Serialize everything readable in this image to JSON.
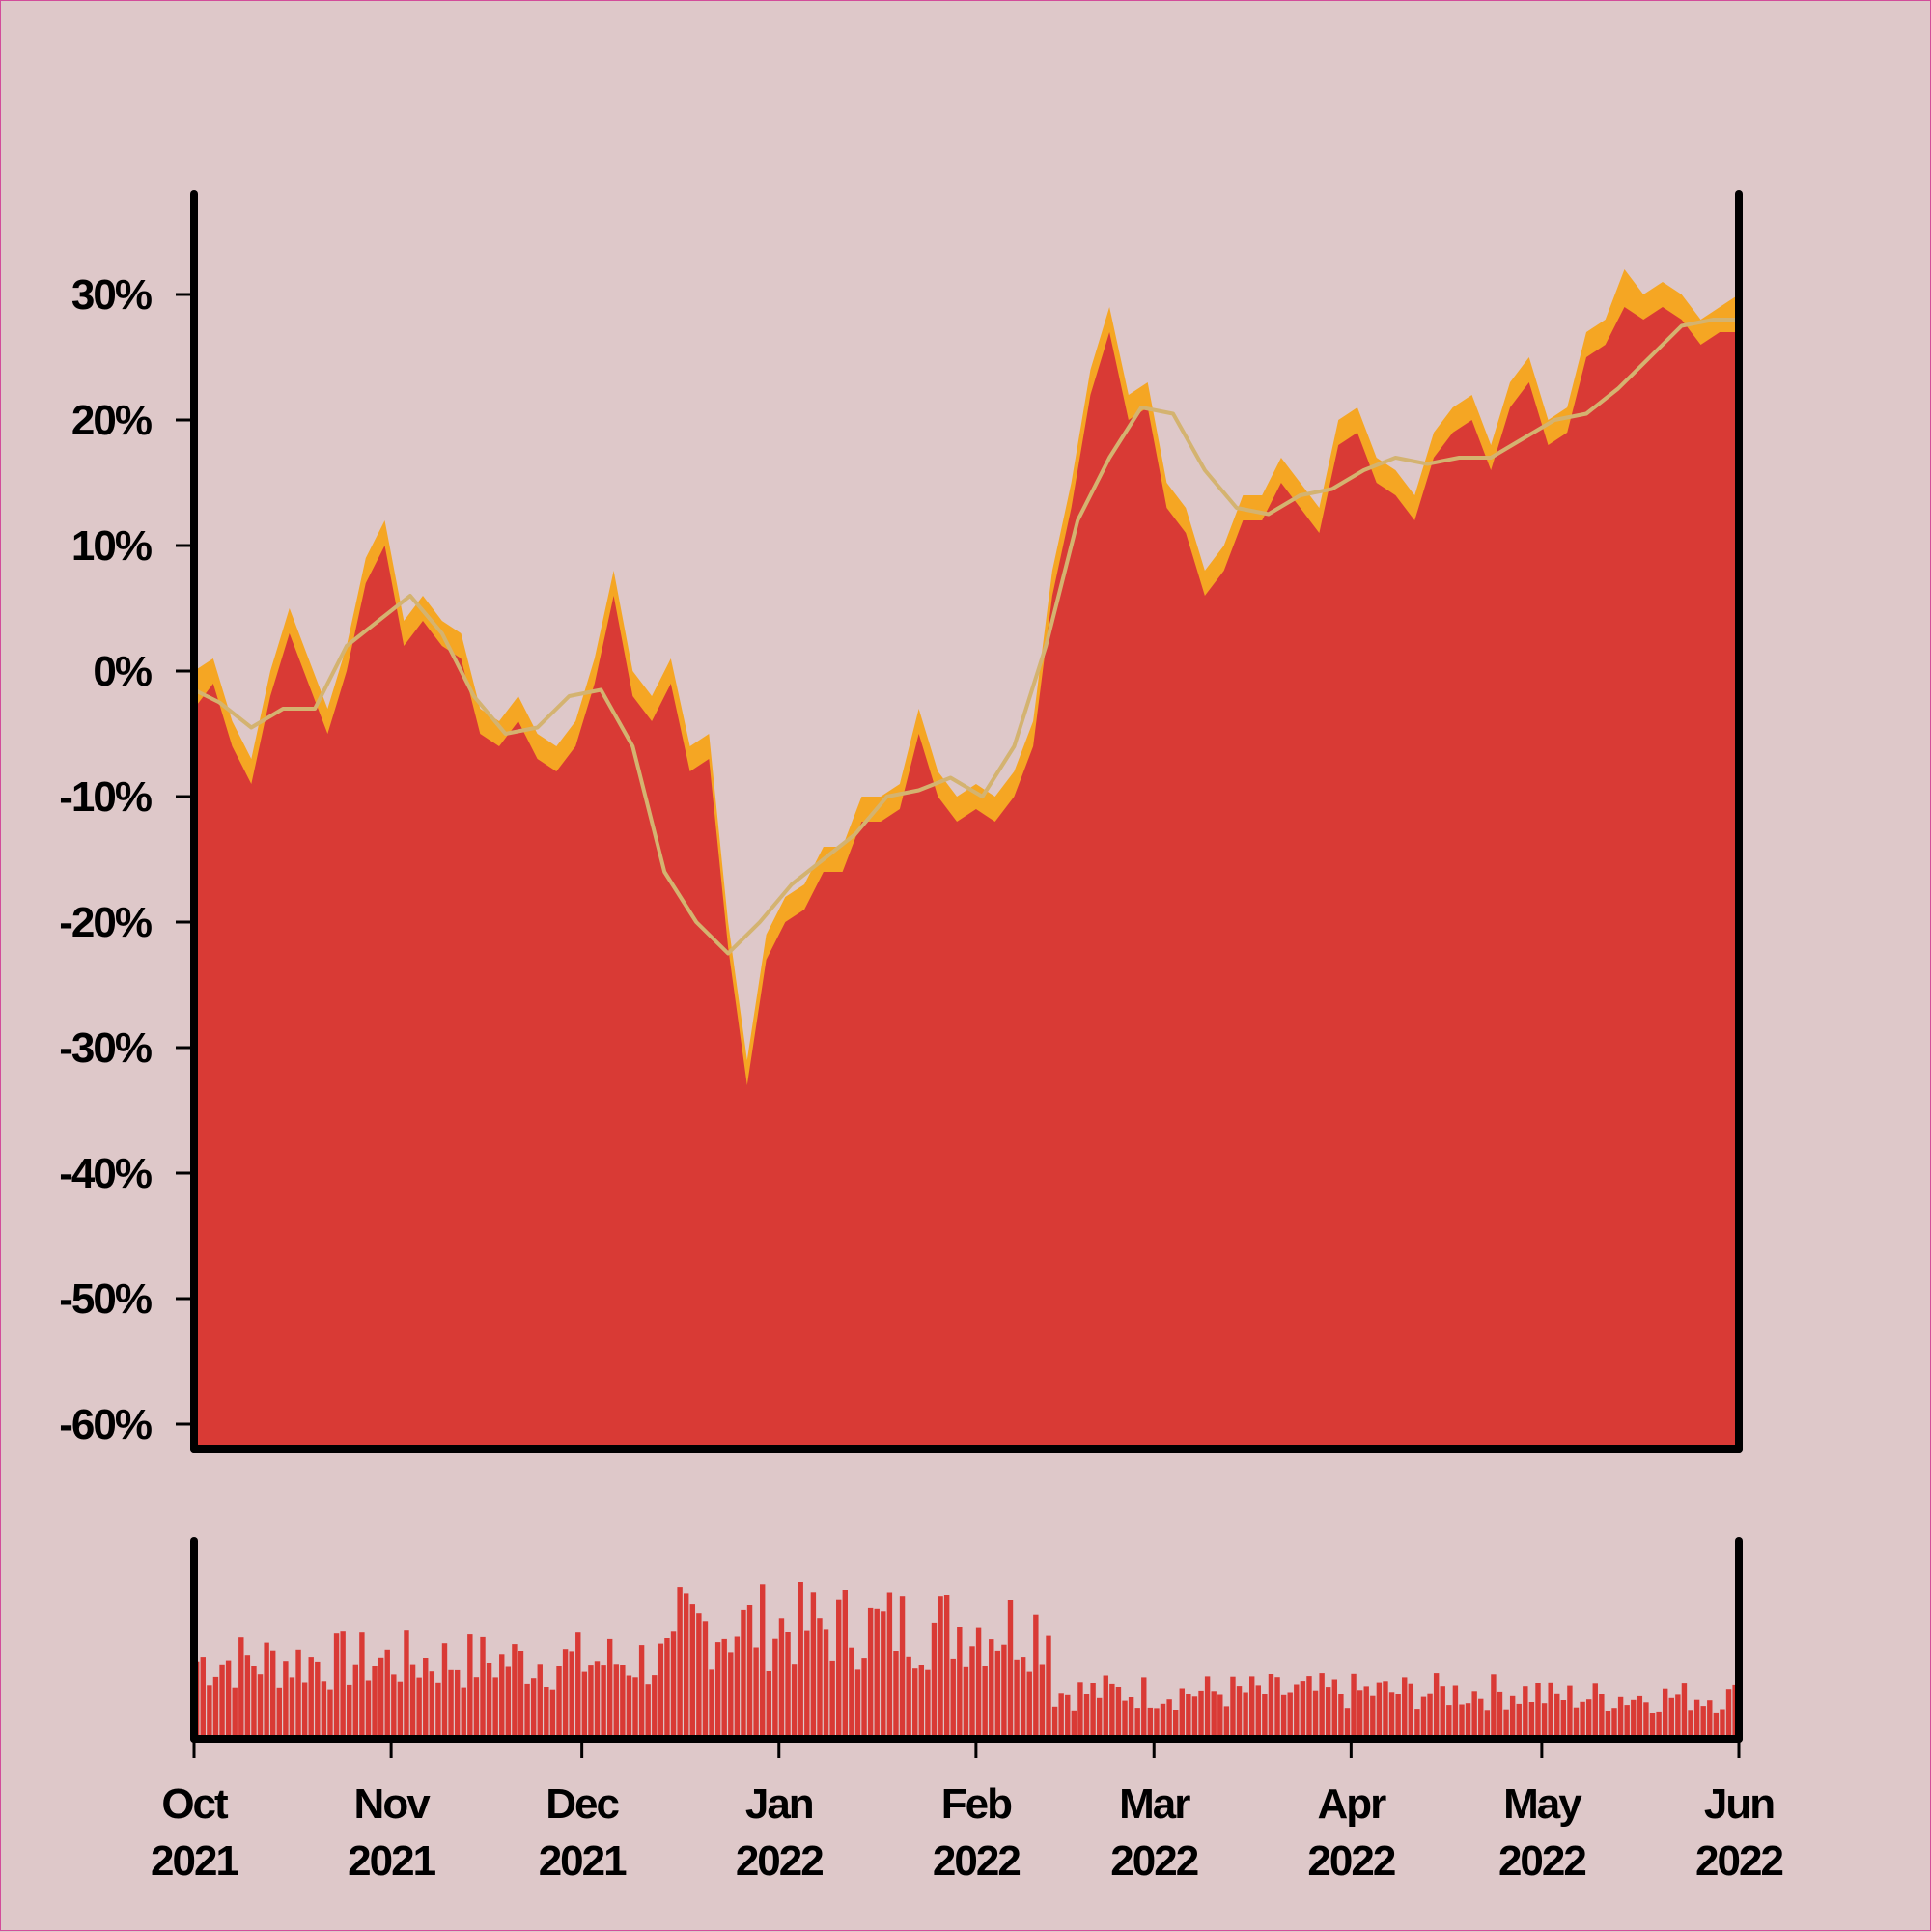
{
  "colors": {
    "background": "#dec8c9",
    "area_fill": "#d93a35",
    "band_fill": "#f5a623",
    "moving_average": "#d4b370",
    "volume_fill": "#d93a35",
    "axis": "#000000"
  },
  "chart_data": [
    {
      "type": "area",
      "title": "",
      "xlabel": "",
      "ylabel": "",
      "y_unit": "%",
      "ylim": [
        -62,
        38
      ],
      "grid": false,
      "yticks": [
        {
          "value": 30,
          "label": "30%"
        },
        {
          "value": 20,
          "label": "20%"
        },
        {
          "value": 10,
          "label": "10%"
        },
        {
          "value": 0,
          "label": "0%"
        },
        {
          "value": -10,
          "label": "-10%"
        },
        {
          "value": -20,
          "label": "-20%"
        },
        {
          "value": -30,
          "label": "-30%"
        },
        {
          "value": -40,
          "label": "-40%"
        },
        {
          "value": -50,
          "label": "-50%"
        },
        {
          "value": -60,
          "label": "-60%"
        }
      ],
      "series": [
        {
          "role": "daily high band",
          "x": [
            "2021-10-01",
            "2021-10-04",
            "2021-10-07",
            "2021-10-10",
            "2021-10-13",
            "2021-10-16",
            "2021-10-19",
            "2021-10-22",
            "2021-10-25",
            "2021-10-28",
            "2021-10-31",
            "2021-11-03",
            "2021-11-06",
            "2021-11-09",
            "2021-11-12",
            "2021-11-15",
            "2021-11-18",
            "2021-11-21",
            "2021-11-24",
            "2021-11-27",
            "2021-11-30",
            "2021-12-03",
            "2021-12-06",
            "2021-12-09",
            "2021-12-12",
            "2021-12-15",
            "2021-12-18",
            "2021-12-21",
            "2021-12-24",
            "2021-12-27",
            "2021-12-30",
            "2022-01-02",
            "2022-01-05",
            "2022-01-08",
            "2022-01-11",
            "2022-01-14",
            "2022-01-17",
            "2022-01-20",
            "2022-01-23",
            "2022-01-26",
            "2022-01-29",
            "2022-02-01",
            "2022-02-04",
            "2022-02-07",
            "2022-02-10",
            "2022-02-13",
            "2022-02-16",
            "2022-02-19",
            "2022-02-22",
            "2022-02-25",
            "2022-02-28",
            "2022-03-03",
            "2022-03-06",
            "2022-03-09",
            "2022-03-12",
            "2022-03-15",
            "2022-03-18",
            "2022-03-21",
            "2022-03-24",
            "2022-03-27",
            "2022-03-30",
            "2022-04-02",
            "2022-04-05",
            "2022-04-08",
            "2022-04-11",
            "2022-04-14",
            "2022-04-17",
            "2022-04-20",
            "2022-04-23",
            "2022-04-26",
            "2022-04-29",
            "2022-05-02",
            "2022-05-05",
            "2022-05-08",
            "2022-05-11",
            "2022-05-14",
            "2022-05-17",
            "2022-05-20",
            "2022-05-23",
            "2022-05-26",
            "2022-05-29",
            "2022-06-01"
          ],
          "values": [
            0,
            1,
            -4,
            -7,
            0,
            5,
            1,
            -3,
            2,
            9,
            12,
            4,
            6,
            4,
            3,
            -3,
            -4,
            -2,
            -5,
            -6,
            -4,
            1,
            8,
            0,
            -2,
            1,
            -6,
            -5,
            -20,
            -31,
            -21,
            -18,
            -17,
            -14,
            -14,
            -10,
            -10,
            -9,
            -3,
            -8,
            -10,
            -9,
            -10,
            -8,
            -4,
            8,
            15,
            24,
            29,
            22,
            23,
            15,
            13,
            8,
            10,
            14,
            14,
            17,
            15,
            13,
            20,
            21,
            17,
            16,
            14,
            19,
            21,
            22,
            18,
            23,
            25,
            20,
            21,
            27,
            28,
            32,
            30,
            31,
            30,
            28,
            29,
            30
          ]
        },
        {
          "role": "daily close",
          "x": [
            "2021-10-01",
            "2021-10-04",
            "2021-10-07",
            "2021-10-10",
            "2021-10-13",
            "2021-10-16",
            "2021-10-19",
            "2021-10-22",
            "2021-10-25",
            "2021-10-28",
            "2021-10-31",
            "2021-11-03",
            "2021-11-06",
            "2021-11-09",
            "2021-11-12",
            "2021-11-15",
            "2021-11-18",
            "2021-11-21",
            "2021-11-24",
            "2021-11-27",
            "2021-11-30",
            "2021-12-03",
            "2021-12-06",
            "2021-12-09",
            "2021-12-12",
            "2021-12-15",
            "2021-12-18",
            "2021-12-21",
            "2021-12-24",
            "2021-12-27",
            "2021-12-30",
            "2022-01-02",
            "2022-01-05",
            "2022-01-08",
            "2022-01-11",
            "2022-01-14",
            "2022-01-17",
            "2022-01-20",
            "2022-01-23",
            "2022-01-26",
            "2022-01-29",
            "2022-02-01",
            "2022-02-04",
            "2022-02-07",
            "2022-02-10",
            "2022-02-13",
            "2022-02-16",
            "2022-02-19",
            "2022-02-22",
            "2022-02-25",
            "2022-02-28",
            "2022-03-03",
            "2022-03-06",
            "2022-03-09",
            "2022-03-12",
            "2022-03-15",
            "2022-03-18",
            "2022-03-21",
            "2022-03-24",
            "2022-03-27",
            "2022-03-30",
            "2022-04-02",
            "2022-04-05",
            "2022-04-08",
            "2022-04-11",
            "2022-04-14",
            "2022-04-17",
            "2022-04-20",
            "2022-04-23",
            "2022-04-26",
            "2022-04-29",
            "2022-05-02",
            "2022-05-05",
            "2022-05-08",
            "2022-05-11",
            "2022-05-14",
            "2022-05-17",
            "2022-05-20",
            "2022-05-23",
            "2022-05-26",
            "2022-05-29",
            "2022-06-01"
          ],
          "values": [
            -3,
            -1,
            -6,
            -9,
            -2,
            3,
            -1,
            -5,
            0,
            7,
            10,
            2,
            4,
            2,
            1,
            -5,
            -6,
            -4,
            -7,
            -8,
            -6,
            -1,
            6,
            -2,
            -4,
            -1,
            -8,
            -7,
            -22,
            -33,
            -23,
            -20,
            -19,
            -16,
            -16,
            -12,
            -12,
            -11,
            -5,
            -10,
            -12,
            -11,
            -12,
            -10,
            -6,
            6,
            13,
            22,
            27,
            20,
            21,
            13,
            11,
            6,
            8,
            12,
            12,
            15,
            13,
            11,
            18,
            19,
            15,
            14,
            12,
            17,
            19,
            20,
            16,
            21,
            23,
            18,
            19,
            25,
            26,
            29,
            28,
            29,
            28,
            26,
            27,
            27
          ]
        },
        {
          "role": "moving average",
          "x": [
            "2021-10-01",
            "2021-10-05",
            "2021-10-10",
            "2021-10-15",
            "2021-10-20",
            "2021-10-25",
            "2021-10-30",
            "2021-11-04",
            "2021-11-09",
            "2021-11-14",
            "2021-11-19",
            "2021-11-24",
            "2021-11-29",
            "2021-12-04",
            "2021-12-09",
            "2021-12-14",
            "2021-12-19",
            "2021-12-24",
            "2021-12-29",
            "2022-01-03",
            "2022-01-08",
            "2022-01-13",
            "2022-01-18",
            "2022-01-23",
            "2022-01-28",
            "2022-02-02",
            "2022-02-07",
            "2022-02-12",
            "2022-02-17",
            "2022-02-22",
            "2022-02-27",
            "2022-03-04",
            "2022-03-09",
            "2022-03-14",
            "2022-03-19",
            "2022-03-24",
            "2022-03-29",
            "2022-04-03",
            "2022-04-08",
            "2022-04-13",
            "2022-04-18",
            "2022-04-23",
            "2022-04-28",
            "2022-05-03",
            "2022-05-08",
            "2022-05-13",
            "2022-05-18",
            "2022-05-23",
            "2022-05-28",
            "2022-06-01"
          ],
          "values": [
            -1.5,
            -2.5,
            -4.5,
            -3,
            -3,
            2,
            4,
            6,
            3,
            -2,
            -5,
            -4.5,
            -2,
            -1.5,
            -6,
            -16,
            -20,
            -22.5,
            -20,
            -17,
            -15,
            -13,
            -10,
            -9.5,
            -8.5,
            -10,
            -6,
            2,
            12,
            17,
            21,
            20.5,
            16,
            13,
            12.5,
            14,
            14.5,
            16,
            17,
            16.5,
            17,
            17,
            18.5,
            20,
            20.5,
            22.5,
            25,
            27.5,
            28,
            28
          ]
        }
      ]
    },
    {
      "type": "bar",
      "role": "volume",
      "title": "",
      "y_axis_labels": false,
      "xticks": [
        {
          "month": "Oct",
          "year": "2021"
        },
        {
          "month": "Nov",
          "year": "2021"
        },
        {
          "month": "Dec",
          "year": "2021"
        },
        {
          "month": "Jan",
          "year": "2022"
        },
        {
          "month": "Feb",
          "year": "2022"
        },
        {
          "month": "Mar",
          "year": "2022"
        },
        {
          "month": "Apr",
          "year": "2022"
        },
        {
          "month": "May",
          "year": "2022"
        },
        {
          "month": "Jun",
          "year": "2022"
        }
      ],
      "volume_level_by_period": [
        {
          "start": "2021-10-01",
          "end": "2021-12-15",
          "relative_level": 0.5
        },
        {
          "start": "2021-12-16",
          "end": "2022-02-12",
          "relative_level": 0.72
        },
        {
          "start": "2022-02-13",
          "end": "2022-04-30",
          "relative_level": 0.3
        },
        {
          "start": "2022-05-01",
          "end": "2022-06-01",
          "relative_level": 0.27
        }
      ]
    }
  ]
}
